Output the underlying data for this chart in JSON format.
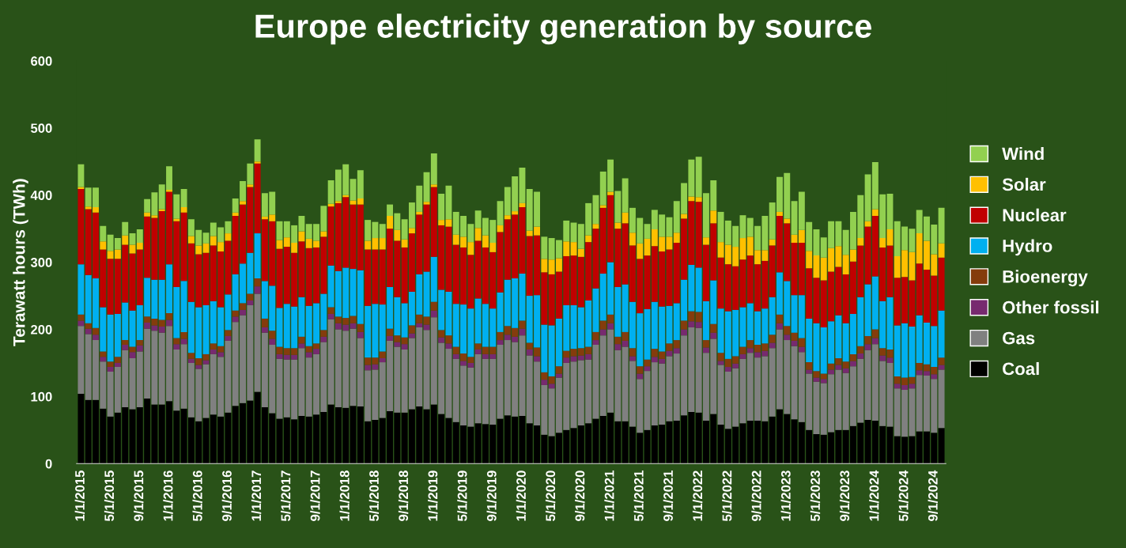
{
  "chart_data": {
    "type": "bar",
    "stacked": true,
    "title": "Europe electricity generation by source",
    "ylabel": "Terawatt hours (TWh)",
    "categories": [
      "1/1/2015",
      null,
      null,
      null,
      "5/1/2015",
      null,
      null,
      null,
      "9/1/2015",
      null,
      null,
      null,
      "1/1/2016",
      null,
      null,
      null,
      "5/1/2016",
      null,
      null,
      null,
      "9/1/2016",
      null,
      null,
      null,
      "1/1/2017",
      null,
      null,
      null,
      "5/1/2017",
      null,
      null,
      null,
      "9/1/2017",
      null,
      null,
      null,
      "1/1/2018",
      null,
      null,
      null,
      "5/1/2018",
      null,
      null,
      null,
      "9/1/2018",
      null,
      null,
      null,
      "1/1/2019",
      null,
      null,
      null,
      "5/1/2019",
      null,
      null,
      null,
      "9/1/2019",
      null,
      null,
      null,
      "1/1/2020",
      null,
      null,
      null,
      "5/1/2020",
      null,
      null,
      null,
      "9/1/2020",
      null,
      null,
      null,
      "1/1/2021",
      null,
      null,
      null,
      "5/1/2021",
      null,
      null,
      null,
      "9/1/2021",
      null,
      null,
      null,
      "1/1/2022",
      null,
      null,
      null,
      "5/1/2022",
      null,
      null,
      null,
      "9/1/2022",
      null,
      null,
      null,
      "1/1/2023",
      null,
      null,
      null,
      "5/1/2023",
      null,
      null,
      null,
      "9/1/2023",
      null,
      null,
      null,
      "1/1/2024",
      null,
      null,
      null,
      "5/1/2024",
      null,
      null,
      null,
      "9/1/2024",
      null
    ],
    "series": [
      {
        "name": "Coal",
        "color": "#000000",
        "values": [
          104,
          95,
          95,
          82,
          70,
          76,
          84,
          81,
          84,
          97,
          88,
          88,
          93,
          79,
          82,
          69,
          63,
          68,
          73,
          70,
          76,
          86,
          90,
          94,
          107,
          84,
          75,
          67,
          69,
          66,
          71,
          70,
          73,
          77,
          88,
          84,
          83,
          86,
          85,
          63,
          65,
          68,
          78,
          76,
          76,
          81,
          85,
          81,
          88,
          74,
          68,
          62,
          57,
          55,
          60,
          59,
          58,
          67,
          72,
          70,
          71,
          60,
          57,
          43,
          41,
          46,
          50,
          53,
          57,
          60,
          67,
          71,
          76,
          63,
          63,
          55,
          46,
          50,
          57,
          58,
          63,
          64,
          72,
          77,
          76,
          64,
          74,
          58,
          52,
          55,
          60,
          64,
          64,
          63,
          70,
          81,
          74,
          66,
          62,
          50,
          44,
          43,
          47,
          50,
          50,
          56,
          61,
          65,
          64,
          56,
          55,
          41,
          40,
          41,
          48,
          48,
          46,
          53
        ]
      },
      {
        "name": "Gas",
        "color": "#808080",
        "values": [
          101,
          98,
          89,
          70,
          67,
          68,
          85,
          76,
          83,
          104,
          110,
          107,
          112,
          91,
          96,
          81,
          78,
          80,
          90,
          89,
          107,
          125,
          131,
          142,
          146,
          111,
          102,
          89,
          86,
          89,
          101,
          88,
          90,
          104,
          127,
          116,
          115,
          115,
          102,
          76,
          75,
          83,
          105,
          98,
          94,
          106,
          118,
          118,
          130,
          106,
          103,
          94,
          89,
          88,
          103,
          97,
          98,
          110,
          112,
          111,
          120,
          101,
          95,
          74,
          71,
          82,
          100,
          99,
          97,
          95,
          110,
          120,
          124,
          106,
          111,
          98,
          80,
          88,
          94,
          91,
          97,
          100,
          119,
          126,
          126,
          101,
          112,
          89,
          85,
          87,
          96,
          101,
          94,
          97,
          102,
          119,
          110,
          109,
          104,
          84,
          78,
          77,
          86,
          90,
          85,
          89,
          95,
          104,
          114,
          97,
          95,
          71,
          70,
          71,
          84,
          83,
          80,
          87
        ]
      },
      {
        "name": "Other fossil",
        "color": "#772a6f",
        "values": [
          8,
          8,
          8,
          7,
          7,
          6,
          8,
          9,
          9,
          9,
          8,
          9,
          9,
          8,
          8,
          6,
          6,
          6,
          7,
          7,
          7,
          8,
          8,
          7,
          11,
          8,
          9,
          7,
          7,
          7,
          7,
          8,
          8,
          8,
          8,
          9,
          9,
          8,
          9,
          8,
          8,
          6,
          7,
          7,
          8,
          7,
          6,
          8,
          10,
          8,
          8,
          7,
          7,
          7,
          7,
          7,
          7,
          7,
          8,
          8,
          10,
          9,
          8,
          8,
          7,
          6,
          8,
          8,
          7,
          8,
          7,
          9,
          9,
          9,
          9,
          7,
          8,
          7,
          8,
          7,
          8,
          8,
          9,
          9,
          9,
          8,
          9,
          6,
          7,
          7,
          7,
          7,
          8,
          8,
          8,
          9,
          8,
          8,
          8,
          6,
          6,
          6,
          7,
          7,
          7,
          8,
          8,
          9,
          9,
          8,
          8,
          7,
          7,
          7,
          7,
          7,
          7,
          7
        ]
      },
      {
        "name": "Bioenergy",
        "color": "#843c0c",
        "values": [
          9,
          8,
          10,
          8,
          8,
          9,
          7,
          8,
          8,
          9,
          10,
          10,
          10,
          9,
          10,
          9,
          10,
          9,
          9,
          9,
          9,
          9,
          10,
          10,
          12,
          13,
          12,
          11,
          10,
          10,
          10,
          9,
          8,
          10,
          10,
          10,
          10,
          11,
          12,
          11,
          10,
          10,
          11,
          10,
          10,
          12,
          13,
          12,
          13,
          11,
          12,
          11,
          11,
          9,
          9,
          11,
          11,
          12,
          13,
          13,
          12,
          10,
          13,
          11,
          11,
          11,
          10,
          11,
          11,
          11,
          12,
          13,
          13,
          11,
          13,
          12,
          11,
          10,
          12,
          11,
          11,
          12,
          13,
          15,
          15,
          11,
          13,
          12,
          12,
          11,
          11,
          12,
          11,
          11,
          12,
          13,
          13,
          12,
          13,
          11,
          10,
          8,
          9,
          10,
          10,
          10,
          11,
          12,
          13,
          11,
          12,
          11,
          11,
          10,
          11,
          10,
          11,
          11
        ]
      },
      {
        "name": "Hydro",
        "color": "#00b0f0",
        "values": [
          75,
          72,
          74,
          66,
          70,
          64,
          56,
          54,
          52,
          58,
          58,
          60,
          73,
          76,
          76,
          76,
          76,
          73,
          63,
          58,
          53,
          54,
          59,
          61,
          67,
          56,
          67,
          58,
          66,
          62,
          59,
          60,
          60,
          54,
          62,
          68,
          75,
          70,
          80,
          77,
          80,
          70,
          62,
          57,
          51,
          50,
          60,
          67,
          67,
          60,
          65,
          64,
          73,
          72,
          67,
          64,
          57,
          59,
          69,
          74,
          70,
          70,
          78,
          71,
          76,
          71,
          68,
          65,
          61,
          69,
          65,
          70,
          78,
          74,
          71,
          69,
          79,
          75,
          70,
          67,
          56,
          55,
          61,
          69,
          66,
          58,
          65,
          66,
          71,
          69,
          59,
          55,
          50,
          52,
          56,
          63,
          67,
          56,
          64,
          65,
          71,
          69,
          63,
          64,
          57,
          60,
          73,
          77,
          79,
          70,
          78,
          76,
          81,
          75,
          71,
          62,
          61,
          70
        ]
      },
      {
        "name": "Nuclear",
        "color": "#c00000",
        "values": [
          112,
          98,
          98,
          86,
          83,
          82,
          86,
          85,
          83,
          91,
          92,
          102,
          108,
          98,
          102,
          87,
          79,
          78,
          83,
          83,
          80,
          87,
          88,
          98,
          104,
          92,
          96,
          88,
          85,
          80,
          83,
          86,
          83,
          85,
          88,
          101,
          105,
          96,
          98,
          84,
          81,
          82,
          87,
          84,
          83,
          87,
          89,
          100,
          104,
          96,
          97,
          88,
          85,
          80,
          86,
          84,
          84,
          90,
          90,
          95,
          99,
          89,
          89,
          78,
          76,
          70,
          73,
          74,
          75,
          87,
          89,
          98,
          100,
          87,
          91,
          84,
          81,
          80,
          83,
          82,
          84,
          90,
          91,
          95,
          98,
          84,
          85,
          76,
          70,
          65,
          71,
          71,
          70,
          71,
          77,
          84,
          86,
          78,
          78,
          75,
          68,
          70,
          74,
          72,
          73,
          78,
          77,
          86,
          90,
          80,
          77,
          71,
          69,
          69,
          77,
          79,
          75,
          79
        ]
      },
      {
        "name": "Solar",
        "color": "#ffc000",
        "values": [
          3,
          4,
          8,
          12,
          12,
          14,
          14,
          13,
          10,
          6,
          4,
          3,
          3,
          4,
          8,
          11,
          13,
          14,
          14,
          14,
          11,
          5,
          5,
          4,
          3,
          4,
          10,
          13,
          14,
          15,
          15,
          14,
          10,
          8,
          4,
          3,
          3,
          6,
          9,
          13,
          17,
          17,
          19,
          16,
          12,
          8,
          4,
          4,
          4,
          8,
          11,
          15,
          16,
          19,
          19,
          18,
          14,
          10,
          6,
          5,
          6,
          8,
          13,
          20,
          22,
          20,
          22,
          20,
          12,
          10,
          7,
          4,
          5,
          9,
          16,
          19,
          23,
          25,
          25,
          22,
          19,
          15,
          7,
          7,
          7,
          11,
          19,
          23,
          29,
          29,
          32,
          28,
          21,
          16,
          9,
          6,
          7,
          12,
          19,
          26,
          33,
          34,
          35,
          31,
          29,
          18,
          11,
          8,
          10,
          14,
          24,
          32,
          40,
          42,
          45,
          43,
          32,
          21
        ]
      },
      {
        "name": "Wind",
        "color": "#92d050",
        "values": [
          34,
          28,
          29,
          23,
          24,
          17,
          20,
          17,
          20,
          20,
          34,
          37,
          35,
          36,
          27,
          25,
          23,
          16,
          20,
          22,
          18,
          21,
          30,
          31,
          33,
          35,
          34,
          28,
          24,
          26,
          23,
          22,
          25,
          38,
          35,
          47,
          46,
          32,
          42,
          31,
          24,
          21,
          17,
          25,
          30,
          38,
          39,
          44,
          46,
          39,
          50,
          34,
          31,
          27,
          26,
          26,
          34,
          36,
          42,
          52,
          53,
          62,
          52,
          33,
          32,
          27,
          31,
          29,
          37,
          48,
          43,
          50,
          48,
          47,
          51,
          37,
          38,
          22,
          29,
          33,
          29,
          47,
          46,
          55,
          60,
          66,
          45,
          45,
          36,
          31,
          34,
          28,
          36,
          51,
          55,
          52,
          68,
          50,
          57,
          43,
          39,
          30,
          40,
          37,
          37,
          56,
          64,
          70,
          70,
          65,
          53,
          52,
          35,
          35,
          35,
          36,
          44,
          53
        ]
      }
    ],
    "ylim": [
      0,
      600
    ],
    "yticks": [
      0,
      100,
      200,
      300,
      400,
      500,
      600
    ],
    "grid": false,
    "legend": "right"
  }
}
